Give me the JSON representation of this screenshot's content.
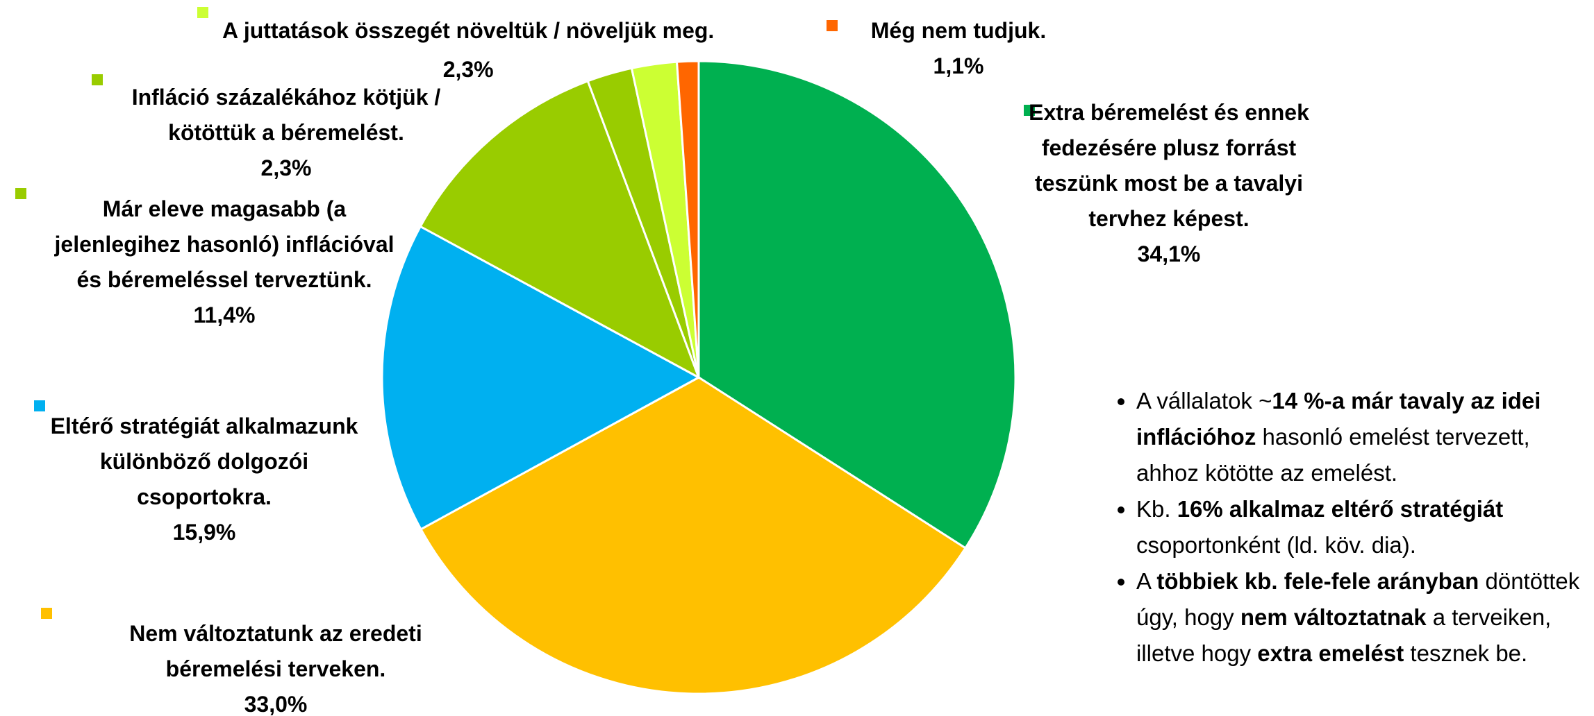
{
  "chart_data": {
    "type": "pie",
    "categories": [
      "Extra béremelést és ennek fedezésére plusz forrást teszünk most be a tavalyi tervhez képest.",
      "Nem változtatunk az eredeti béremelési terveken.",
      "Eltérő stratégiát alkalmazunk különböző dolgozói csoportokra.",
      "Már eleve magasabb (a jelenlegihez hasonló) inflációval és béremeléssel terveztünk.",
      "Infláció százalékához kötjük / kötöttük a béremelést.",
      "A juttatások összegét növeltük / növeljük meg.",
      "Még nem tudjuk."
    ],
    "values": [
      34.1,
      33.0,
      15.9,
      11.4,
      2.3,
      2.3,
      1.1
    ],
    "value_labels": [
      "34,1%",
      "33,0%",
      "15,9%",
      "11,4%",
      "2,3%",
      "2,3%",
      "1,1%"
    ],
    "colors": [
      "#00b050",
      "#ffc000",
      "#00b0f0",
      "#99cc00",
      "#99cc00",
      "#ccff33",
      "#ff6600"
    ]
  },
  "notes": [
    [
      {
        "text": "A vállalatok ~",
        "bold": false
      },
      {
        "text": "14 %-a már tavaly az idei inflációhoz",
        "bold": true
      },
      {
        "text": " hasonló emelést tervezett, ahhoz kötötte az emelést.",
        "bold": false
      }
    ],
    [
      {
        "text": "Kb. ",
        "bold": false
      },
      {
        "text": "16% alkalmaz eltérő stratégiát",
        "bold": true
      },
      {
        "text": " csoportonként (ld. köv. dia).",
        "bold": false
      }
    ],
    [
      {
        "text": "A ",
        "bold": false
      },
      {
        "text": "többiek kb. fele-fele arányban",
        "bold": true
      },
      {
        "text": " döntöttek úgy, hogy ",
        "bold": false
      },
      {
        "text": "nem változtatnak",
        "bold": true
      },
      {
        "text": " a terveiken, illetve hogy ",
        "bold": false
      },
      {
        "text": "extra emelést",
        "bold": true
      },
      {
        "text": " tesznek be.",
        "bold": false
      }
    ]
  ]
}
